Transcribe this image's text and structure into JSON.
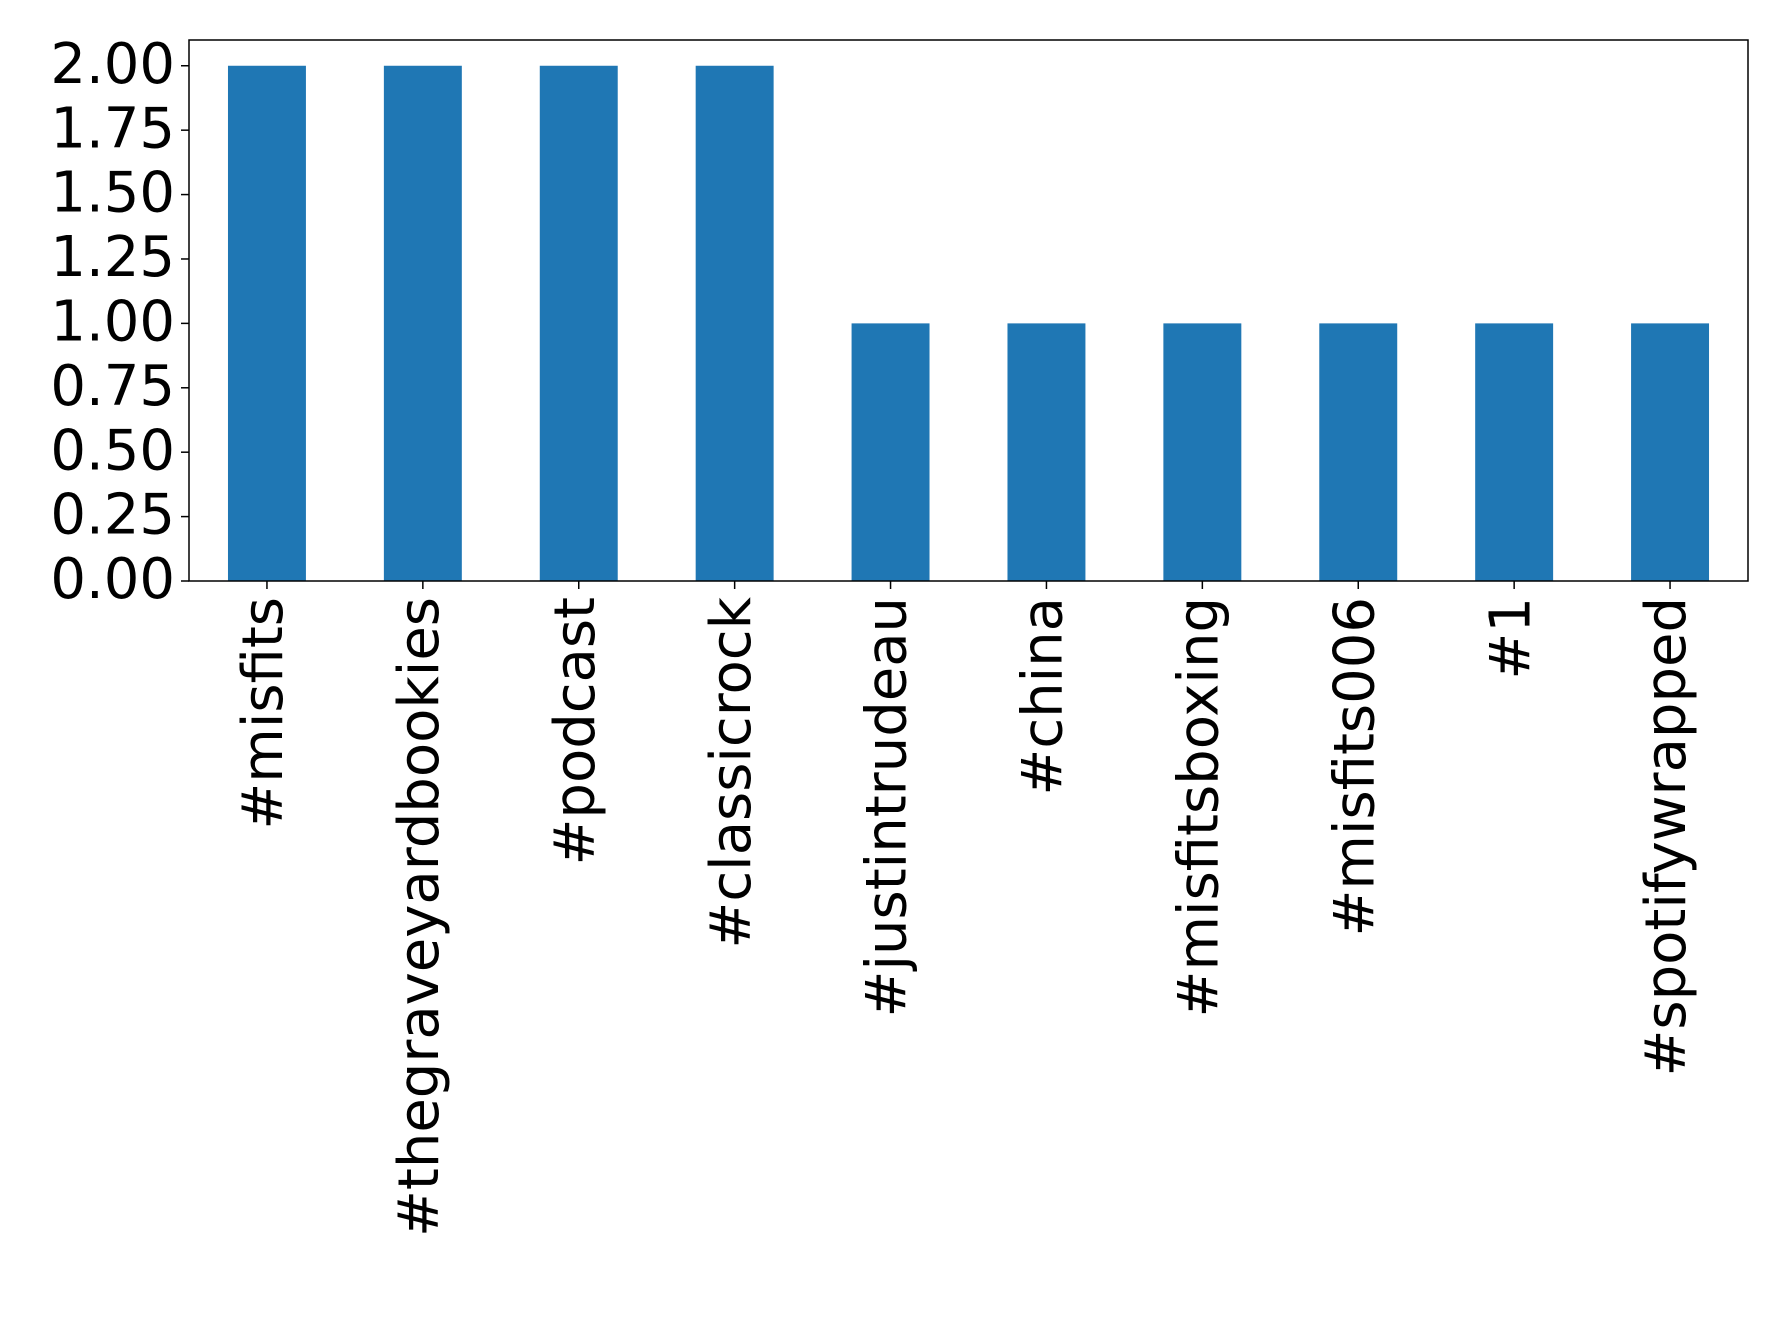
{
  "chart_data": {
    "type": "bar",
    "categories": [
      "#misfits",
      "#thegraveyardbookies",
      "#podcast",
      "#classicrock",
      "#justintrudeau",
      "#china",
      "#misfitsboxing",
      "#misfits006",
      "#1",
      "#spotifywrapped"
    ],
    "values": [
      2,
      2,
      2,
      2,
      1,
      1,
      1,
      1,
      1,
      1
    ],
    "color": "#1f77b4",
    "ylim": [
      0,
      2.1
    ],
    "yticks": [
      {
        "value": 0,
        "label": "0.00"
      },
      {
        "value": 0.25,
        "label": "0.25"
      },
      {
        "value": 0.5,
        "label": "0.50"
      },
      {
        "value": 0.75,
        "label": "0.75"
      },
      {
        "value": 1,
        "label": "1.00"
      },
      {
        "value": 1.25,
        "label": "1.25"
      },
      {
        "value": 1.5,
        "label": "1.50"
      },
      {
        "value": 1.75,
        "label": "1.75"
      },
      {
        "value": 2,
        "label": "2.00"
      }
    ],
    "grid": false
  }
}
